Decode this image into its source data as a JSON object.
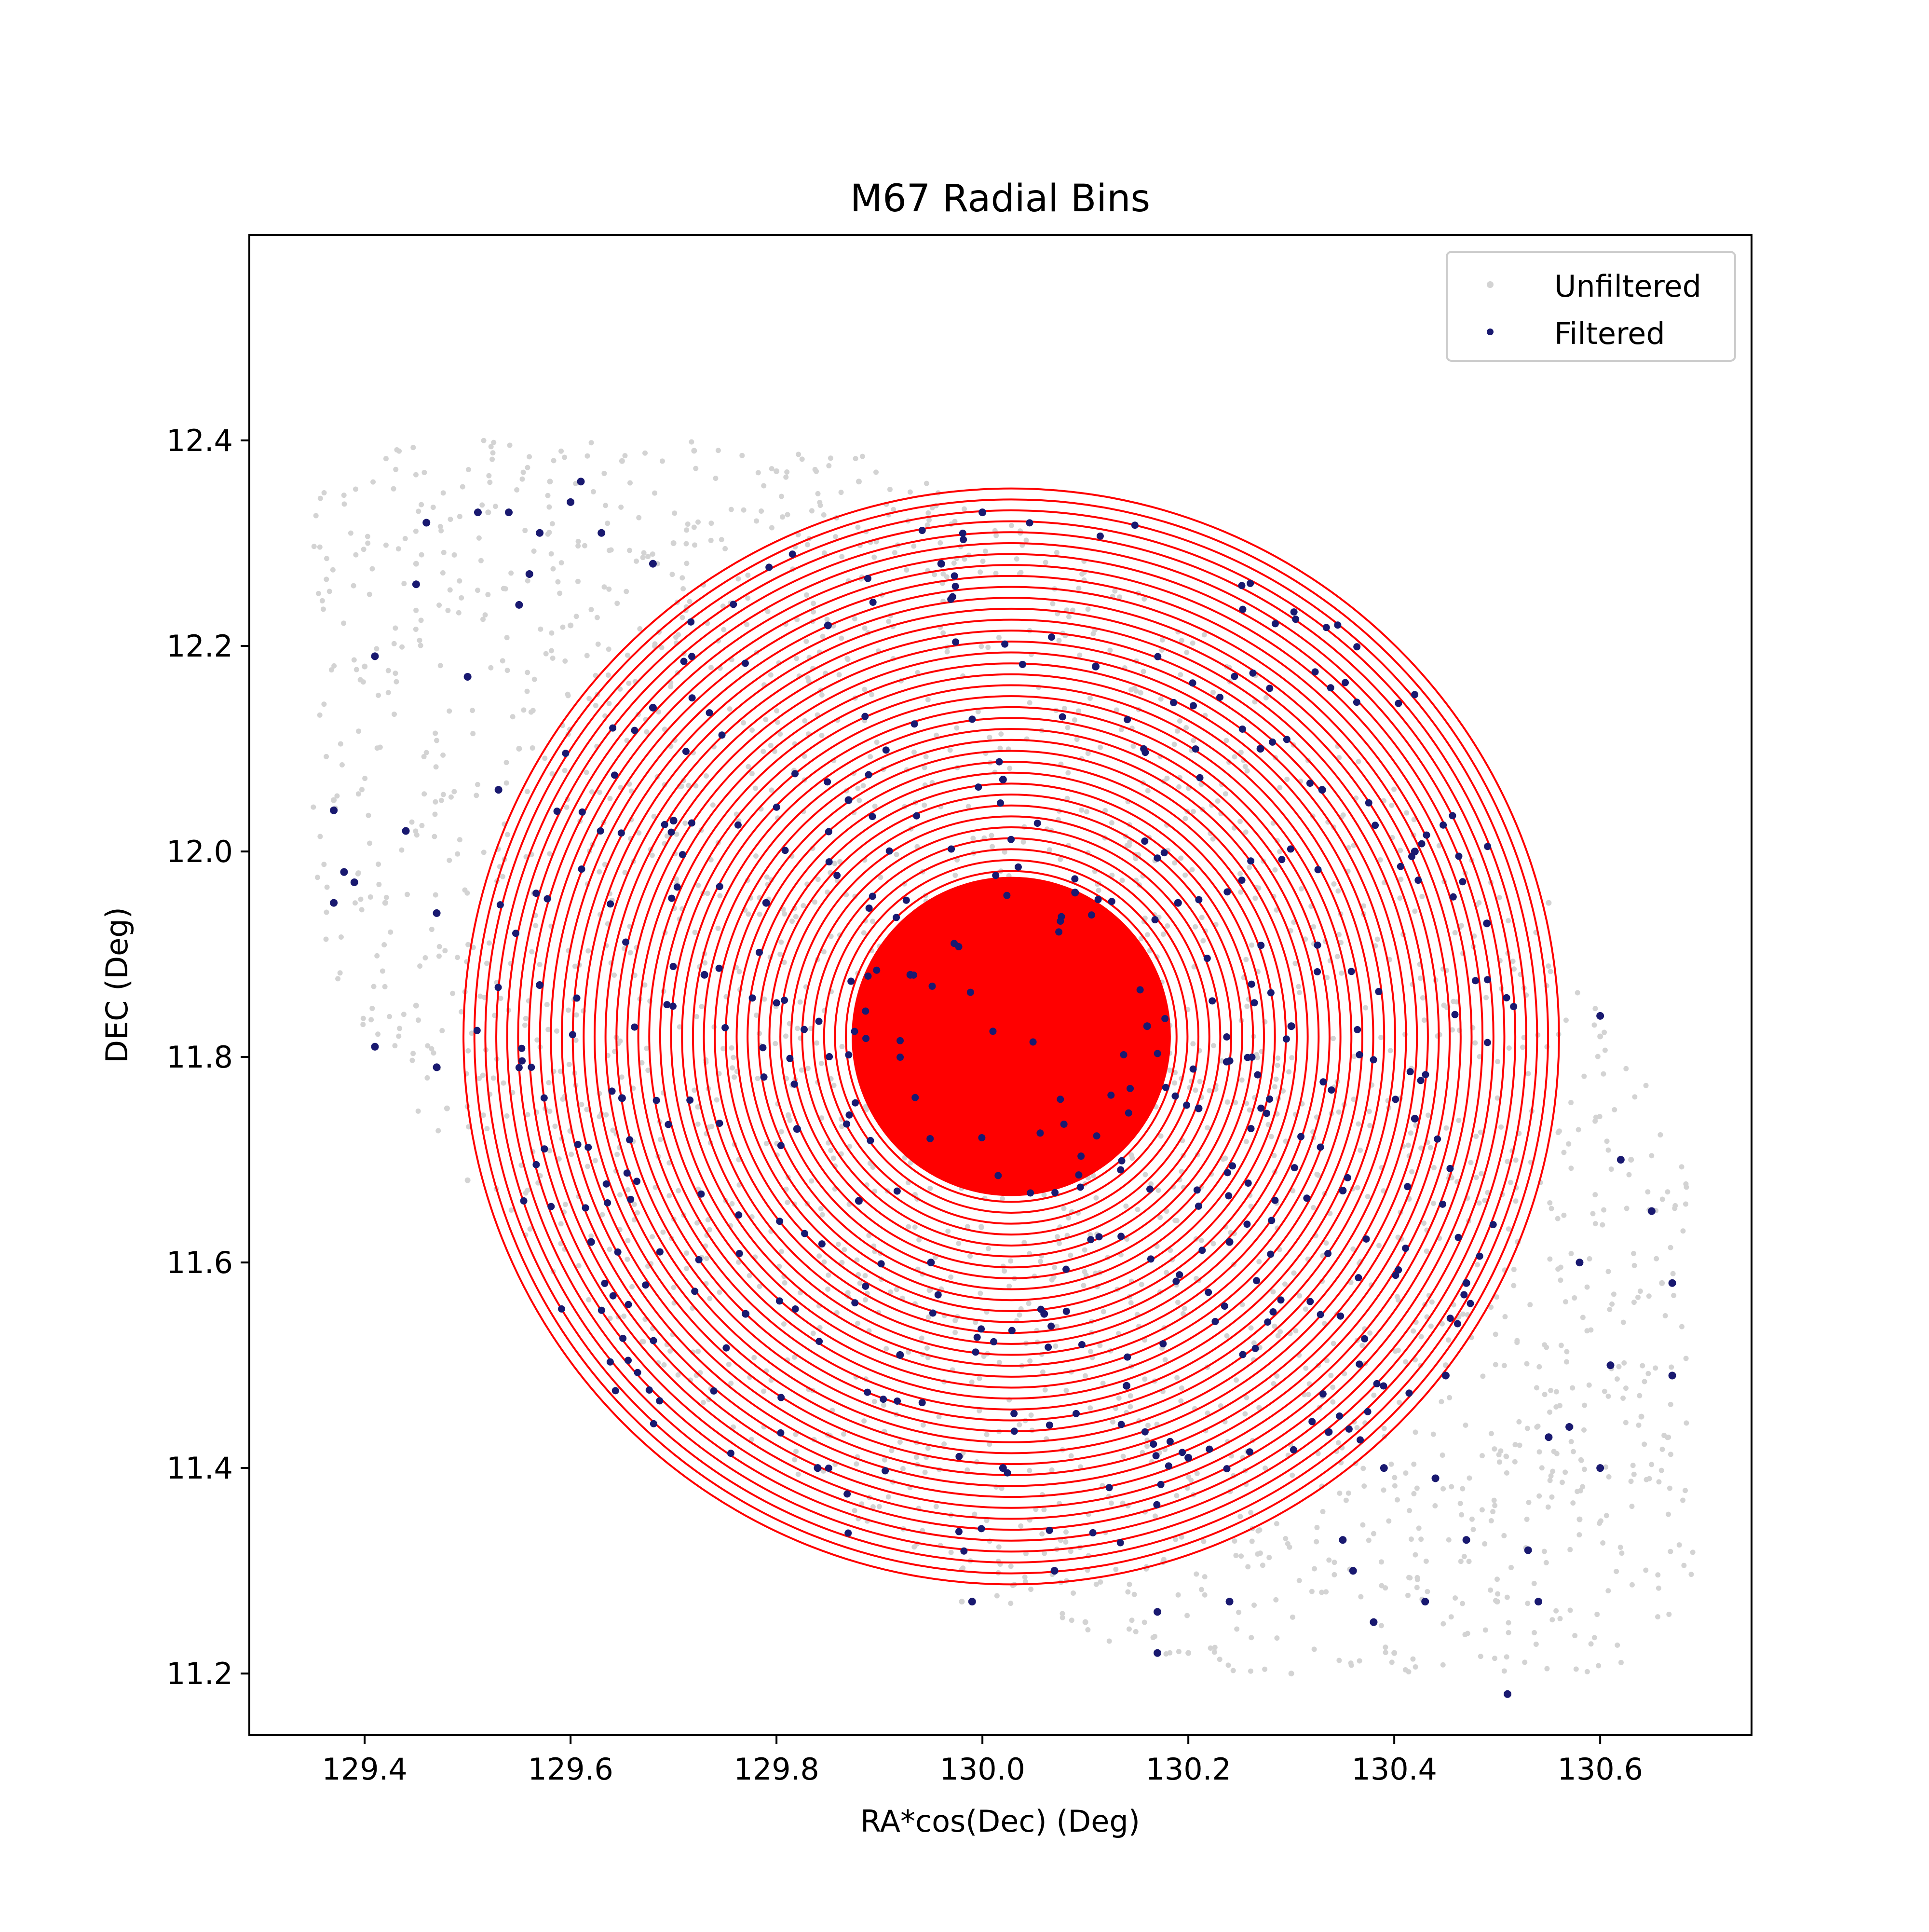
{
  "chart_data": {
    "type": "scatter",
    "title": "M67 Radial Bins",
    "xlabel": "RA*cos(Dec) (Deg)",
    "ylabel": "DEC (Deg)",
    "xlim": [
      129.288,
      130.747
    ],
    "ylim": [
      11.14,
      12.6
    ],
    "xticks": [
      129.4,
      129.6,
      129.8,
      130.0,
      130.2,
      130.4,
      130.6
    ],
    "xtick_labels": [
      "129.4",
      "129.6",
      "129.8",
      "130.0",
      "130.2",
      "130.4",
      "130.6"
    ],
    "yticks": [
      11.2,
      11.4,
      11.6,
      11.8,
      12.0,
      12.2,
      12.4
    ],
    "ytick_labels": [
      "11.2",
      "11.4",
      "11.6",
      "11.8",
      "12.0",
      "12.2",
      "12.4"
    ],
    "grid": false,
    "legend_position": "top-right",
    "series": [
      {
        "name": "Unfiltered",
        "color": "#d3d3d3",
        "marker": "point",
        "shape": "elliptical band elongated from upper-left to lower-right around the cluster",
        "points": [
          [
            129.37,
            12.05
          ],
          [
            129.4,
            12.18
          ],
          [
            129.45,
            12.28
          ],
          [
            129.52,
            12.33
          ],
          [
            129.58,
            12.36
          ],
          [
            129.65,
            12.38
          ],
          [
            129.72,
            12.39
          ],
          [
            129.8,
            12.37
          ],
          [
            129.88,
            12.36
          ],
          [
            129.42,
            11.95
          ],
          [
            129.45,
            11.85
          ],
          [
            129.48,
            11.75
          ],
          [
            129.5,
            11.68
          ],
          [
            130.55,
            11.95
          ],
          [
            130.6,
            11.82
          ],
          [
            130.63,
            11.7
          ],
          [
            130.66,
            11.58
          ],
          [
            130.64,
            11.45
          ],
          [
            130.58,
            11.35
          ],
          [
            130.5,
            11.27
          ],
          [
            130.4,
            11.22
          ],
          [
            130.3,
            11.2
          ],
          [
            130.2,
            11.22
          ],
          [
            130.1,
            11.25
          ],
          [
            129.98,
            11.27
          ],
          [
            130.45,
            11.5
          ],
          [
            130.52,
            11.62
          ],
          [
            129.55,
            12.1
          ],
          [
            129.6,
            12.22
          ],
          [
            129.7,
            12.3
          ]
        ]
      },
      {
        "name": "Filtered",
        "color": "#191970",
        "marker": "point",
        "points": [
          [
            130.0,
            12.33
          ],
          [
            129.61,
            12.36
          ],
          [
            129.46,
            12.32
          ],
          [
            129.51,
            12.33
          ],
          [
            129.54,
            12.33
          ],
          [
            129.57,
            12.31
          ],
          [
            129.63,
            12.31
          ],
          [
            129.41,
            12.19
          ],
          [
            129.44,
            12.02
          ],
          [
            129.37,
            12.04
          ],
          [
            129.38,
            11.98
          ],
          [
            129.39,
            11.97
          ],
          [
            129.37,
            11.95
          ],
          [
            129.47,
            11.94
          ],
          [
            129.41,
            11.81
          ],
          [
            129.47,
            11.79
          ],
          [
            129.6,
            12.34
          ],
          [
            129.68,
            12.28
          ],
          [
            129.55,
            12.24
          ],
          [
            129.56,
            12.27
          ],
          [
            129.45,
            12.26
          ],
          [
            129.53,
            12.06
          ],
          [
            129.5,
            12.17
          ],
          [
            130.6,
            11.84
          ],
          [
            130.67,
            11.58
          ],
          [
            130.67,
            11.49
          ],
          [
            130.65,
            11.65
          ],
          [
            130.62,
            11.7
          ],
          [
            130.58,
            11.6
          ],
          [
            130.61,
            11.5
          ],
          [
            130.6,
            11.4
          ],
          [
            130.57,
            11.44
          ],
          [
            130.53,
            11.32
          ],
          [
            130.54,
            11.27
          ],
          [
            130.51,
            11.18
          ],
          [
            130.43,
            11.27
          ],
          [
            130.44,
            11.39
          ],
          [
            130.39,
            11.4
          ],
          [
            130.35,
            11.33
          ],
          [
            130.36,
            11.3
          ],
          [
            130.38,
            11.25
          ],
          [
            130.24,
            11.27
          ],
          [
            130.17,
            11.22
          ],
          [
            130.17,
            11.26
          ],
          [
            129.99,
            11.27
          ],
          [
            130.45,
            11.49
          ],
          [
            130.47,
            11.33
          ],
          [
            130.55,
            11.43
          ],
          [
            130.49,
            11.93
          ],
          [
            130.42,
            12.0
          ],
          [
            130.02,
            12.07
          ],
          [
            129.87,
            12.05
          ],
          [
            129.73,
            11.88
          ],
          [
            129.93,
            11.88
          ],
          [
            130.16,
            11.83
          ],
          [
            130.21,
            11.75
          ],
          [
            130.3,
            11.83
          ],
          [
            129.95,
            11.6
          ],
          [
            130.06,
            11.55
          ],
          [
            130.24,
            11.62
          ],
          [
            129.82,
            11.73
          ],
          [
            129.79,
            11.95
          ],
          [
            130.09,
            11.96
          ],
          [
            130.19,
            11.95
          ],
          [
            129.88,
            11.66
          ],
          [
            130.02,
            11.4
          ],
          [
            129.77,
            11.55
          ],
          [
            130.35,
            11.67
          ],
          [
            129.65,
            11.76
          ],
          [
            130.11,
            12.18
          ],
          [
            129.85,
            12.22
          ],
          [
            129.7,
            12.03
          ],
          [
            130.27,
            12.1
          ],
          [
            129.92,
            11.51
          ],
          [
            130.14,
            11.48
          ],
          [
            129.57,
            11.87
          ],
          [
            130.42,
            11.74
          ],
          [
            129.84,
            11.4
          ],
          [
            130.2,
            11.41
          ],
          [
            129.96,
            12.28
          ],
          [
            130.07,
            11.3
          ],
          [
            129.62,
            11.62
          ],
          [
            130.47,
            11.58
          ],
          [
            129.68,
            12.14
          ],
          [
            130.33,
            12.06
          ]
        ]
      },
      {
        "name": "",
        "color": "#ff0000",
        "marker": "circle outline",
        "center": [
          130.028,
          11.82
        ],
        "ring_count": 50,
        "ring_radius_min": 0.012,
        "ring_radius_max": 0.532,
        "inner_radius_dense": 0.155
      }
    ],
    "legend": [
      "Unfiltered",
      "Filtered"
    ]
  }
}
